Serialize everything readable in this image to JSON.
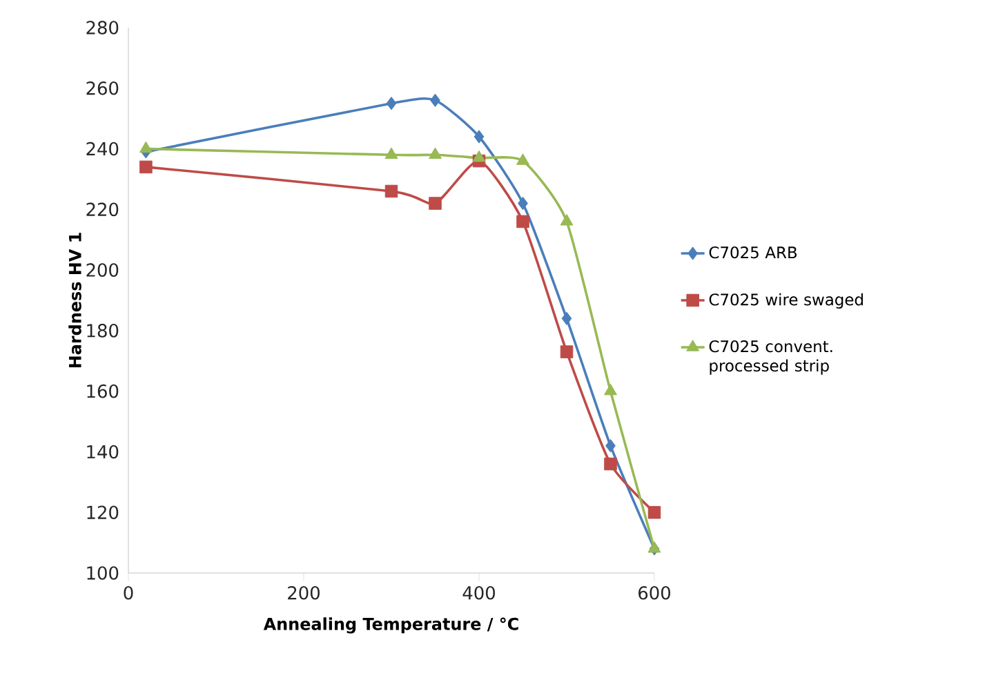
{
  "chart_data": {
    "type": "line",
    "xlabel": "Annealing Temperature /  °C",
    "ylabel": "Hardness HV 1",
    "xlim": [
      0,
      600
    ],
    "xticks": [
      0,
      200,
      400,
      600
    ],
    "ylim": [
      100,
      280
    ],
    "yticks": [
      100,
      120,
      140,
      160,
      180,
      200,
      220,
      240,
      260,
      280
    ],
    "grid": false,
    "legend": "right",
    "line_style": "solid",
    "series": [
      {
        "name": "C7025 ARB",
        "color": "#4a7ebb",
        "marker": "diamond",
        "x": [
          20,
          300,
          350,
          400,
          450,
          500,
          550,
          600
        ],
        "values": [
          239,
          255,
          256,
          244,
          222,
          184,
          142,
          108
        ]
      },
      {
        "name": "C7025 wire swaged",
        "color": "#be4b48",
        "marker": "square",
        "x": [
          20,
          300,
          350,
          400,
          450,
          500,
          550,
          600
        ],
        "values": [
          234,
          226,
          222,
          236,
          216,
          173,
          136,
          120
        ]
      },
      {
        "name": "C7025 convent. processed strip",
        "color": "#98b954",
        "marker": "triangle",
        "x": [
          20,
          300,
          350,
          400,
          450,
          500,
          550,
          600
        ],
        "values": [
          240,
          238,
          238,
          237,
          236,
          216,
          160,
          108
        ]
      }
    ]
  }
}
